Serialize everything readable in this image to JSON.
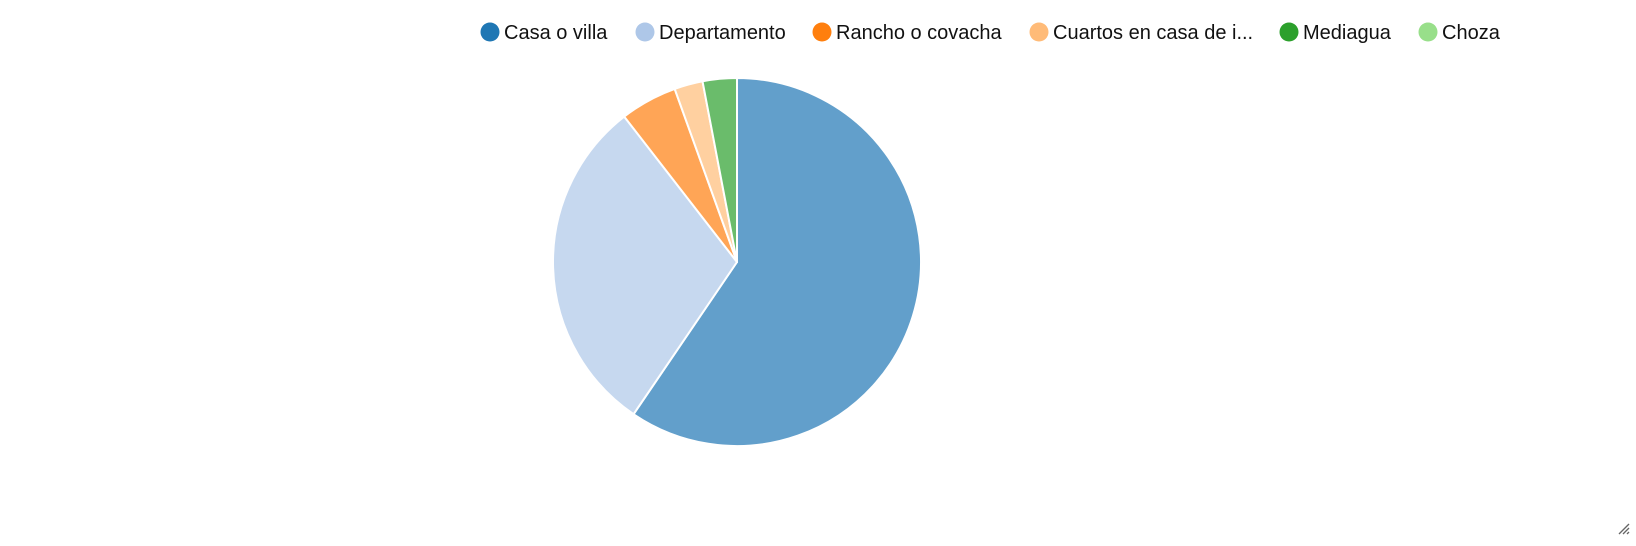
{
  "chart_data": {
    "type": "pie",
    "title": "",
    "legend_position": "top-right",
    "categories": [
      "Casa o villa",
      "Departamento",
      "Rancho o covacha",
      "Cuartos en casa de i...",
      "Mediagua",
      "Choza"
    ],
    "values": [
      59.5,
      30.0,
      5.0,
      2.5,
      3.0,
      0.0
    ],
    "legend_colors": [
      "#1f77b4",
      "#aec7e8",
      "#ff7f0e",
      "#ffbb78",
      "#2ca02c",
      "#98df8a"
    ],
    "slice_colors": [
      "#629fcb",
      "#c6d8ef",
      "#ffa556",
      "#ffd0a0",
      "#6abc6b",
      "#b7eaae"
    ],
    "start_angle_deg": 0
  },
  "ui": {
    "resize_handle_icon": "resize-grip-icon"
  }
}
